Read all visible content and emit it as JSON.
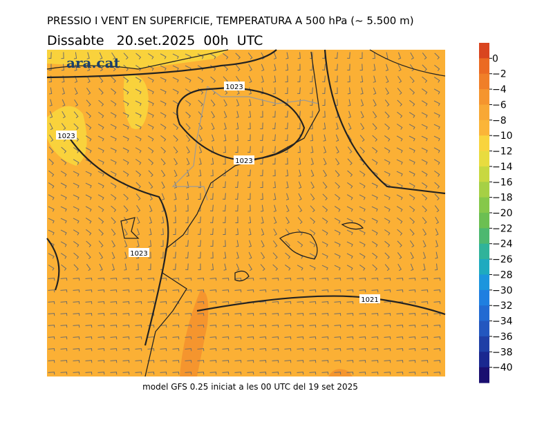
{
  "title": "PRESSIO I VENT EN SUPERFICIE, TEMPERATURA A 500 hPa (~ 5.500 m)",
  "subtitle": "Dissabte   20.set.2025  00h  UTC",
  "logo": "ara.cat",
  "isobar_labels": [
    1023,
    1023,
    1023,
    1023,
    1021
  ],
  "footer": "model GFS 0.25 iniciat a les 00 UTC del 19 set 2025",
  "colorbar": {
    "ticks": [
      0,
      {
        "value": -2,
        "label": "−2"
      },
      {
        "value": -4,
        "label": "−4"
      },
      {
        "value": -6,
        "label": "−6"
      },
      {
        "value": -8,
        "label": "−8"
      },
      {
        "value": -10,
        "label": "−10"
      },
      {
        "value": -12,
        "label": "−12"
      },
      {
        "value": -14,
        "label": "−14"
      },
      {
        "value": -16,
        "label": "−16"
      },
      {
        "value": -18,
        "label": "−18"
      },
      {
        "value": -20,
        "label": "−20"
      },
      {
        "value": -22,
        "label": "−22"
      },
      {
        "value": -24,
        "label": "−24"
      },
      {
        "value": -26,
        "label": "−26"
      },
      {
        "value": -28,
        "label": "−28"
      },
      {
        "value": -30,
        "label": "−30"
      },
      {
        "value": -32,
        "label": "−32"
      },
      {
        "value": -34,
        "label": "−34"
      },
      {
        "value": -36,
        "label": "−36"
      },
      {
        "value": -38,
        "label": "−38"
      },
      {
        "value": -40,
        "label": "−40"
      }
    ],
    "colors": [
      "#d9451f",
      "#eb6a22",
      "#f07f28",
      "#f5952e",
      "#f8a835",
      "#fbb538",
      "#f9d43e",
      "#e8dc3f",
      "#c8d840",
      "#a6d045",
      "#86c84a",
      "#6cbf52",
      "#4db870",
      "#30b39a",
      "#1eaabf",
      "#1b95dd",
      "#1f7fe0",
      "#226ad2",
      "#2357bf",
      "#1f3fa6",
      "#1a2890",
      "#1a0f70"
    ]
  }
}
